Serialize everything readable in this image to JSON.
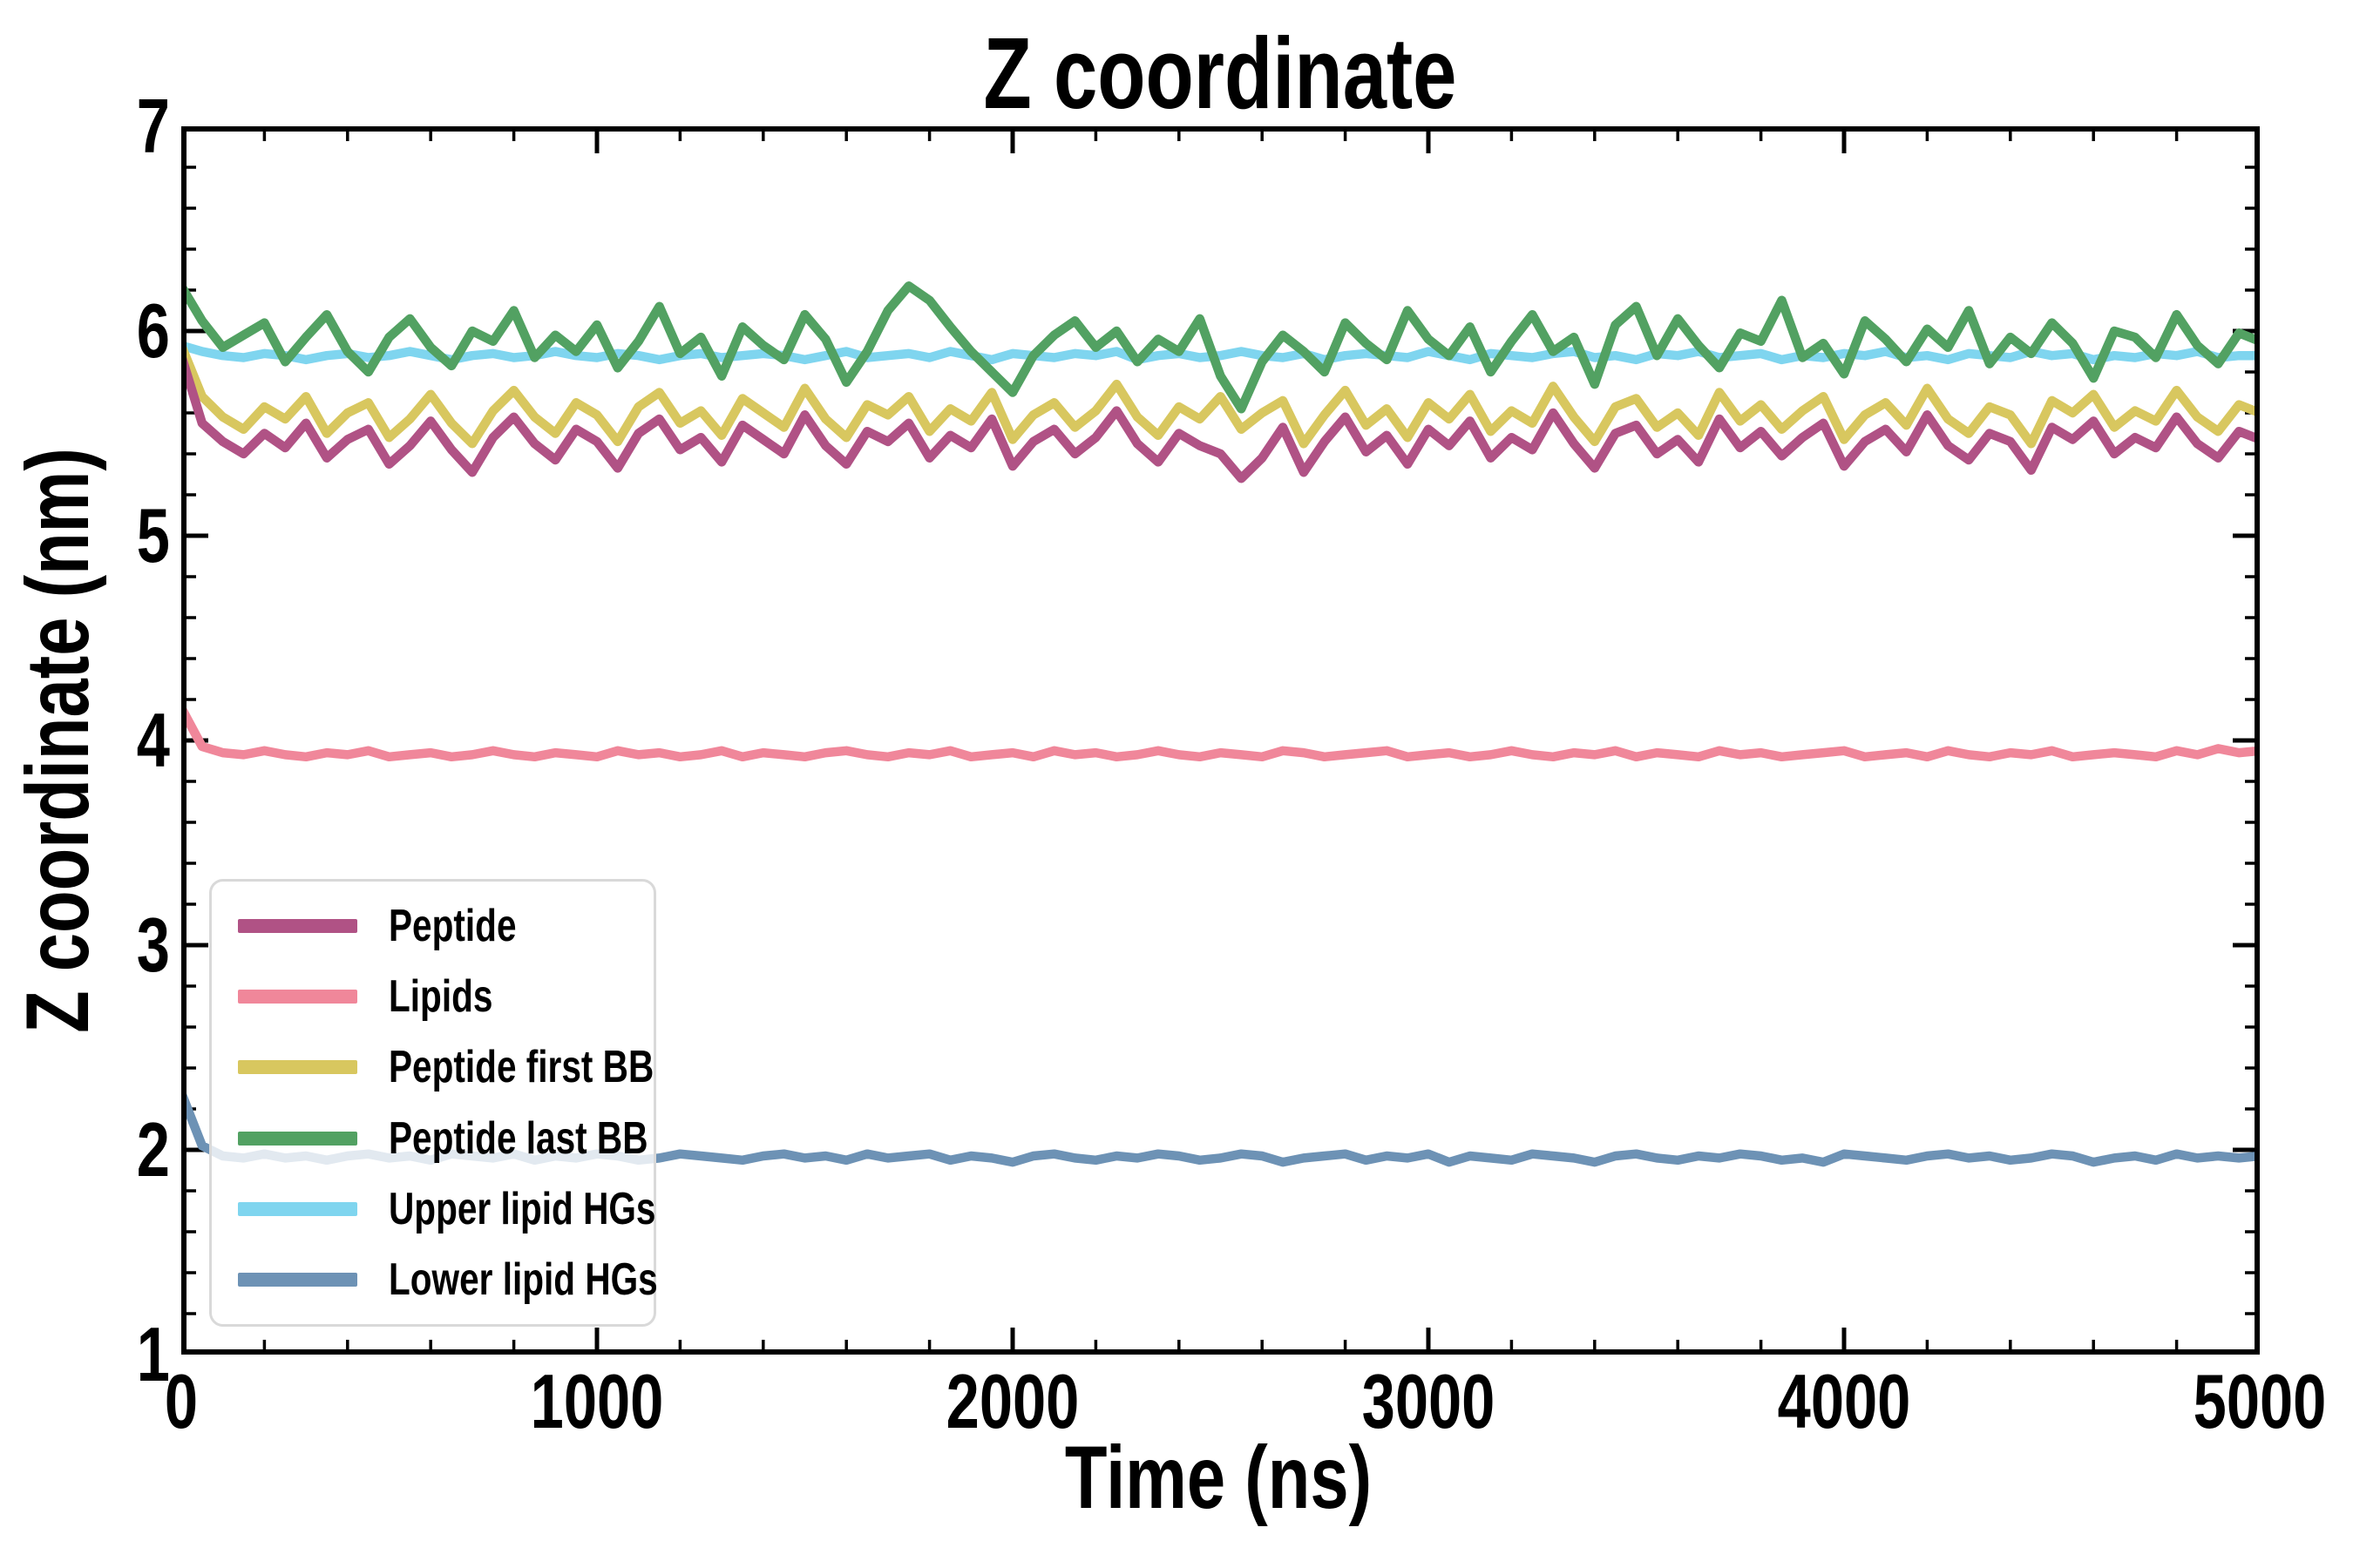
{
  "title": "Z coordinate",
  "axis_color": "#000000",
  "background_color": "#ffffff",
  "legend": {
    "border_color": "#d9d9d9",
    "entries": [
      {
        "label": "Peptide",
        "color": "#b05285"
      },
      {
        "label": "Lipids",
        "color": "#f0879a"
      },
      {
        "label": "Peptide first BB",
        "color": "#d8c75f"
      },
      {
        "label": "Peptide last BB",
        "color": "#52a162"
      },
      {
        "label": "Upper lipid HGs",
        "color": "#7fd5ef"
      },
      {
        "label": "Lower lipid HGs",
        "color": "#6d92b5"
      }
    ]
  },
  "chart_data": {
    "type": "line",
    "title": "Z coordinate",
    "xlabel": "Time (ns)",
    "ylabel": "Z coordinate (nm)",
    "xlim": [
      0,
      5000
    ],
    "ylim": [
      1,
      7
    ],
    "x_major_ticks": [
      0,
      1000,
      2000,
      3000,
      4000,
      5000
    ],
    "y_major_ticks": [
      1,
      2,
      3,
      4,
      5,
      6,
      7
    ],
    "x_minor_step": 200,
    "y_minor_step": 0.2,
    "grid": false,
    "legend_position": "lower left",
    "line_width": 10.5,
    "x_step": 50,
    "series": [
      {
        "name": "Peptide",
        "color": "#b05285",
        "zorder": 6,
        "values": [
          5.88,
          5.55,
          5.46,
          5.4,
          5.5,
          5.43,
          5.55,
          5.38,
          5.47,
          5.52,
          5.35,
          5.44,
          5.56,
          5.42,
          5.31,
          5.48,
          5.58,
          5.45,
          5.37,
          5.52,
          5.46,
          5.33,
          5.5,
          5.57,
          5.42,
          5.48,
          5.36,
          5.54,
          5.47,
          5.4,
          5.59,
          5.44,
          5.35,
          5.51,
          5.46,
          5.55,
          5.38,
          5.49,
          5.43,
          5.57,
          5.34,
          5.46,
          5.52,
          5.4,
          5.48,
          5.61,
          5.45,
          5.36,
          5.5,
          5.44,
          5.4,
          5.28,
          5.38,
          5.53,
          5.31,
          5.46,
          5.58,
          5.41,
          5.49,
          5.35,
          5.52,
          5.44,
          5.56,
          5.38,
          5.48,
          5.42,
          5.6,
          5.45,
          5.33,
          5.5,
          5.54,
          5.4,
          5.47,
          5.36,
          5.57,
          5.43,
          5.51,
          5.39,
          5.48,
          5.55,
          5.34,
          5.46,
          5.52,
          5.41,
          5.59,
          5.44,
          5.37,
          5.5,
          5.46,
          5.32,
          5.53,
          5.47,
          5.56,
          5.4,
          5.48,
          5.43,
          5.58,
          5.45,
          5.38,
          5.51,
          5.47
        ]
      },
      {
        "name": "Lipids",
        "color": "#f0879a",
        "zorder": 3,
        "values": [
          4.16,
          3.97,
          3.94,
          3.93,
          3.95,
          3.93,
          3.92,
          3.94,
          3.93,
          3.95,
          3.92,
          3.93,
          3.94,
          3.92,
          3.93,
          3.95,
          3.93,
          3.92,
          3.94,
          3.93,
          3.92,
          3.95,
          3.93,
          3.94,
          3.92,
          3.93,
          3.95,
          3.92,
          3.94,
          3.93,
          3.92,
          3.94,
          3.95,
          3.93,
          3.92,
          3.94,
          3.93,
          3.95,
          3.92,
          3.93,
          3.94,
          3.92,
          3.95,
          3.93,
          3.94,
          3.92,
          3.93,
          3.95,
          3.93,
          3.92,
          3.94,
          3.93,
          3.92,
          3.95,
          3.94,
          3.92,
          3.93,
          3.94,
          3.95,
          3.92,
          3.93,
          3.94,
          3.92,
          3.93,
          3.95,
          3.93,
          3.92,
          3.94,
          3.93,
          3.95,
          3.92,
          3.94,
          3.93,
          3.92,
          3.95,
          3.93,
          3.94,
          3.92,
          3.93,
          3.94,
          3.95,
          3.92,
          3.93,
          3.94,
          3.92,
          3.95,
          3.93,
          3.92,
          3.94,
          3.93,
          3.95,
          3.92,
          3.93,
          3.94,
          3.93,
          3.92,
          3.95,
          3.93,
          3.96,
          3.94,
          3.95
        ]
      },
      {
        "name": "Peptide first BB",
        "color": "#d8c75f",
        "zorder": 4,
        "values": [
          5.93,
          5.68,
          5.58,
          5.52,
          5.63,
          5.57,
          5.68,
          5.5,
          5.6,
          5.65,
          5.48,
          5.57,
          5.69,
          5.55,
          5.45,
          5.61,
          5.71,
          5.58,
          5.5,
          5.65,
          5.59,
          5.46,
          5.63,
          5.7,
          5.55,
          5.61,
          5.49,
          5.67,
          5.6,
          5.53,
          5.72,
          5.57,
          5.48,
          5.64,
          5.59,
          5.68,
          5.51,
          5.62,
          5.56,
          5.7,
          5.47,
          5.59,
          5.65,
          5.53,
          5.61,
          5.74,
          5.58,
          5.49,
          5.63,
          5.57,
          5.68,
          5.52,
          5.6,
          5.66,
          5.45,
          5.59,
          5.71,
          5.54,
          5.62,
          5.48,
          5.65,
          5.57,
          5.69,
          5.51,
          5.61,
          5.55,
          5.73,
          5.58,
          5.46,
          5.63,
          5.67,
          5.53,
          5.6,
          5.49,
          5.7,
          5.56,
          5.64,
          5.52,
          5.61,
          5.68,
          5.47,
          5.59,
          5.65,
          5.54,
          5.72,
          5.57,
          5.5,
          5.63,
          5.59,
          5.45,
          5.66,
          5.6,
          5.69,
          5.53,
          5.61,
          5.56,
          5.71,
          5.58,
          5.51,
          5.64,
          5.6
        ]
      },
      {
        "name": "Peptide last BB",
        "color": "#52a162",
        "zorder": 5,
        "values": [
          6.22,
          6.05,
          5.92,
          5.98,
          6.04,
          5.85,
          5.97,
          6.08,
          5.9,
          5.8,
          5.97,
          6.06,
          5.92,
          5.83,
          6.0,
          5.95,
          6.1,
          5.87,
          5.98,
          5.9,
          6.03,
          5.82,
          5.95,
          6.12,
          5.89,
          5.97,
          5.78,
          6.02,
          5.93,
          5.86,
          6.08,
          5.96,
          5.75,
          5.9,
          6.1,
          6.22,
          6.15,
          6.02,
          5.9,
          5.8,
          5.7,
          5.88,
          5.98,
          6.05,
          5.92,
          6.0,
          5.85,
          5.96,
          5.9,
          6.06,
          5.78,
          5.62,
          5.85,
          5.98,
          5.9,
          5.8,
          6.04,
          5.94,
          5.86,
          6.1,
          5.96,
          5.88,
          6.02,
          5.8,
          5.95,
          6.08,
          5.9,
          5.97,
          5.74,
          6.03,
          6.12,
          5.88,
          6.06,
          5.93,
          5.82,
          5.99,
          5.95,
          6.15,
          5.87,
          5.94,
          5.79,
          6.05,
          5.96,
          5.85,
          6.01,
          5.92,
          6.1,
          5.84,
          5.97,
          5.89,
          6.04,
          5.94,
          5.77,
          6.0,
          5.97,
          5.87,
          6.08,
          5.93,
          5.84,
          5.99,
          5.95
        ]
      },
      {
        "name": "Upper lipid HGs",
        "color": "#7fd5ef",
        "zorder": 1,
        "values": [
          5.93,
          5.9,
          5.88,
          5.87,
          5.89,
          5.88,
          5.86,
          5.88,
          5.89,
          5.87,
          5.88,
          5.9,
          5.88,
          5.86,
          5.88,
          5.89,
          5.87,
          5.88,
          5.9,
          5.88,
          5.87,
          5.89,
          5.88,
          5.86,
          5.88,
          5.89,
          5.87,
          5.88,
          5.89,
          5.88,
          5.86,
          5.88,
          5.9,
          5.87,
          5.88,
          5.89,
          5.87,
          5.9,
          5.88,
          5.86,
          5.89,
          5.88,
          5.87,
          5.89,
          5.88,
          5.9,
          5.86,
          5.88,
          5.89,
          5.87,
          5.88,
          5.9,
          5.88,
          5.87,
          5.89,
          5.86,
          5.88,
          5.89,
          5.88,
          5.87,
          5.9,
          5.88,
          5.86,
          5.89,
          5.88,
          5.87,
          5.89,
          5.9,
          5.87,
          5.88,
          5.86,
          5.89,
          5.88,
          5.9,
          5.87,
          5.88,
          5.89,
          5.86,
          5.88,
          5.87,
          5.89,
          5.88,
          5.9,
          5.87,
          5.88,
          5.86,
          5.89,
          5.88,
          5.87,
          5.9,
          5.88,
          5.89,
          5.86,
          5.88,
          5.87,
          5.89,
          5.88,
          5.9,
          5.87,
          5.88,
          5.88
        ]
      },
      {
        "name": "Lower lipid HGs",
        "color": "#6d92b5",
        "zorder": 2,
        "values": [
          2.28,
          2.02,
          1.97,
          1.96,
          1.98,
          1.96,
          1.97,
          1.95,
          1.97,
          1.98,
          1.96,
          1.97,
          1.95,
          1.98,
          1.97,
          1.96,
          1.98,
          1.95,
          1.97,
          1.96,
          1.98,
          1.97,
          1.95,
          1.96,
          1.98,
          1.97,
          1.96,
          1.95,
          1.97,
          1.98,
          1.96,
          1.97,
          1.95,
          1.98,
          1.96,
          1.97,
          1.98,
          1.95,
          1.97,
          1.96,
          1.94,
          1.97,
          1.98,
          1.96,
          1.95,
          1.97,
          1.96,
          1.98,
          1.97,
          1.95,
          1.96,
          1.98,
          1.97,
          1.94,
          1.96,
          1.97,
          1.98,
          1.95,
          1.97,
          1.96,
          1.98,
          1.94,
          1.97,
          1.96,
          1.95,
          1.98,
          1.97,
          1.96,
          1.94,
          1.97,
          1.98,
          1.96,
          1.95,
          1.97,
          1.96,
          1.98,
          1.97,
          1.95,
          1.96,
          1.94,
          1.98,
          1.97,
          1.96,
          1.95,
          1.97,
          1.98,
          1.96,
          1.97,
          1.95,
          1.96,
          1.98,
          1.97,
          1.94,
          1.96,
          1.97,
          1.95,
          1.98,
          1.96,
          1.97,
          1.96,
          1.97
        ]
      }
    ]
  }
}
